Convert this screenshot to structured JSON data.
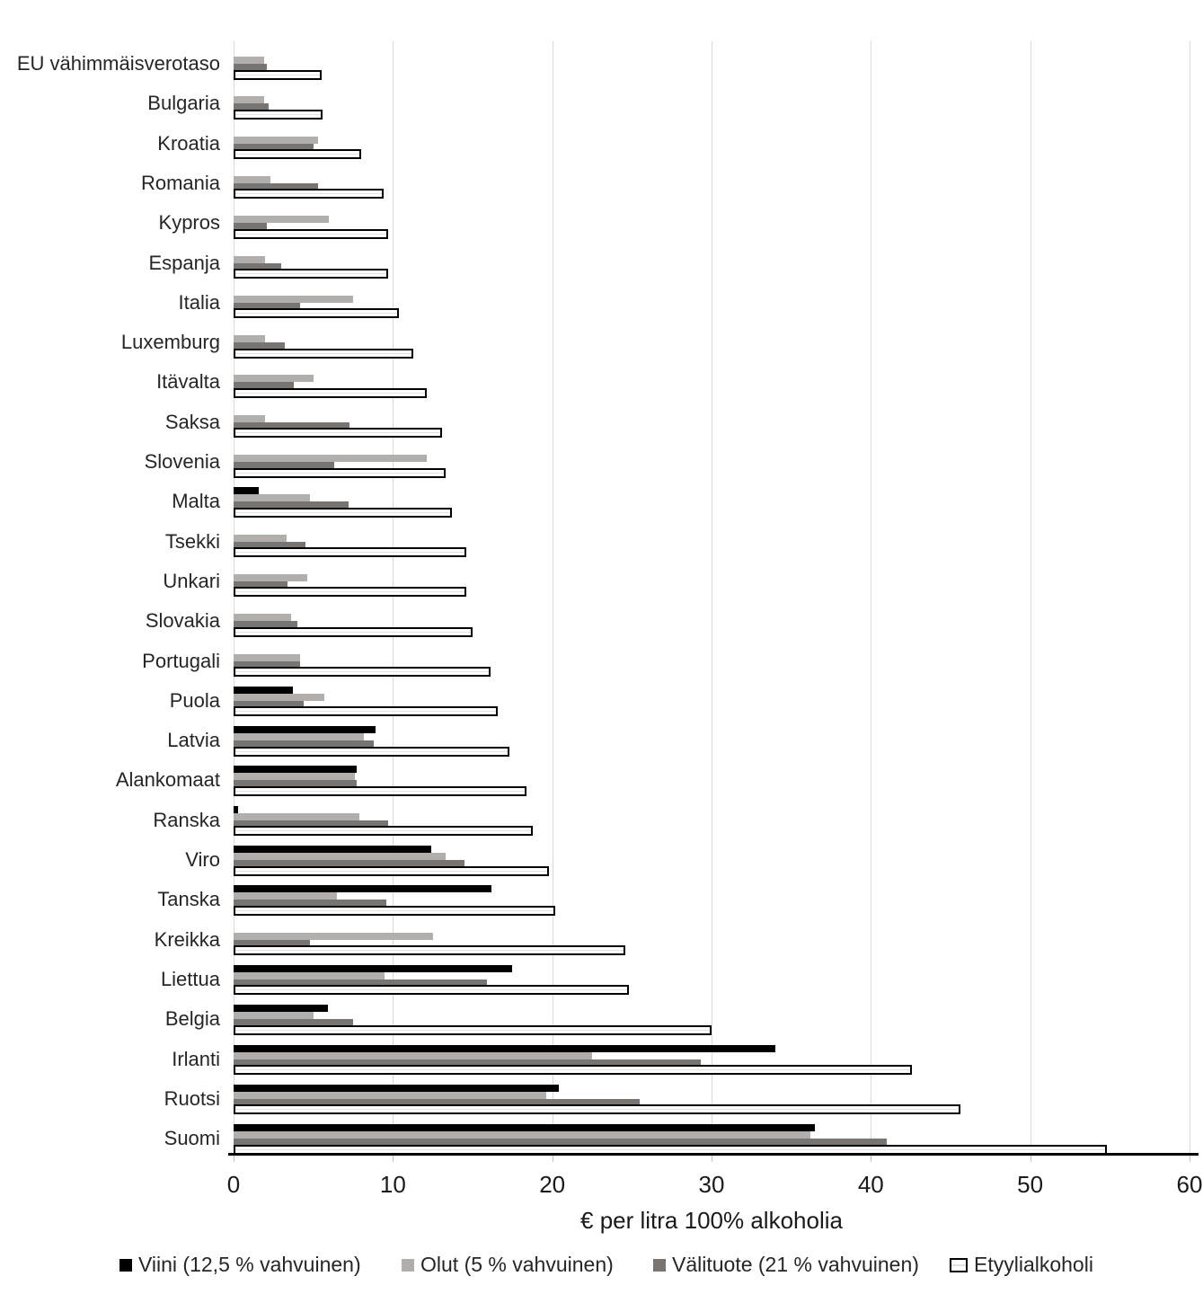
{
  "chart_data": {
    "type": "bar",
    "orientation": "horizontal",
    "title": "",
    "xlabel": "€ per litra 100% alkoholia",
    "xlim": [
      0,
      60
    ],
    "x_ticks": [
      0,
      10,
      20,
      30,
      40,
      50,
      60
    ],
    "grid": true,
    "legend_position": "bottom",
    "categories": [
      "EU vähimmäisverotaso",
      "Bulgaria",
      "Kroatia",
      "Romania",
      "Kypros",
      "Espanja",
      "Italia",
      "Luxemburg",
      "Itävalta",
      "Saksa",
      "Slovenia",
      "Malta",
      "Tsekki",
      "Unkari",
      "Slovakia",
      "Portugali",
      "Puola",
      "Latvia",
      "Alankomaat",
      "Ranska",
      "Viro",
      "Tanska",
      "Kreikka",
      "Liettua",
      "Belgia",
      "Irlanti",
      "Ruotsi",
      "Suomi"
    ],
    "series": [
      {
        "name": "Viini (12,5 % vahvuinen)",
        "color": "#000000",
        "values": [
          0,
          0,
          0,
          0,
          0,
          0,
          0,
          0,
          0,
          0,
          0,
          1.6,
          0,
          0,
          0,
          0,
          3.7,
          8.9,
          7.7,
          0.3,
          12.4,
          16.2,
          0,
          17.5,
          5.9,
          34.0,
          20.4,
          36.5
        ]
      },
      {
        "name": "Olut (5 % vahvuinen)",
        "color": "#b1aeab",
        "values": [
          1.9,
          1.9,
          5.3,
          2.3,
          6.0,
          2.0,
          7.5,
          2.0,
          5.0,
          2.0,
          12.1,
          4.8,
          3.3,
          4.6,
          3.6,
          4.2,
          5.7,
          8.2,
          7.6,
          7.9,
          13.3,
          6.5,
          12.5,
          9.5,
          5.0,
          22.5,
          19.6,
          36.2
        ]
      },
      {
        "name": "Välituote (21 % vahvuinen)",
        "color": "#777472",
        "values": [
          2.1,
          2.2,
          5.0,
          5.3,
          2.1,
          3.0,
          4.2,
          3.2,
          3.8,
          7.3,
          6.3,
          7.2,
          4.5,
          3.4,
          4.0,
          4.2,
          4.4,
          8.8,
          7.7,
          9.7,
          14.5,
          9.6,
          4.8,
          15.9,
          7.5,
          29.3,
          25.5,
          41.0
        ]
      },
      {
        "name": "Etyylialkoholi",
        "color": "#ffffff",
        "border_color": "#000000",
        "values": [
          5.5,
          5.6,
          8.0,
          9.4,
          9.7,
          9.7,
          10.4,
          11.3,
          12.1,
          13.1,
          13.3,
          13.7,
          14.6,
          14.6,
          15.0,
          16.1,
          16.6,
          17.3,
          18.4,
          18.8,
          19.8,
          20.2,
          24.6,
          24.8,
          30.0,
          42.6,
          45.6,
          54.8
        ]
      }
    ]
  }
}
